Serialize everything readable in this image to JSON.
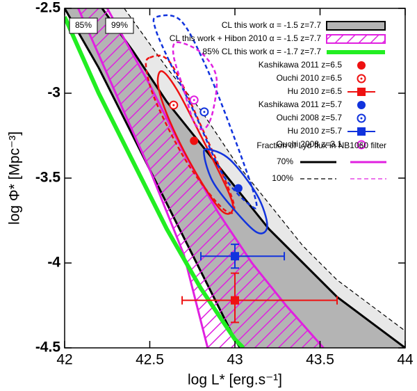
{
  "chart_data": {
    "type": "scatter",
    "xlabel": "log L* [erg.s⁻¹]",
    "ylabel": "log Φ* [Mpc⁻³]",
    "xlim": [
      42,
      44
    ],
    "xticks": [
      42,
      42.5,
      43,
      43.5,
      44
    ],
    "ylim": [
      -4.5,
      -2.5
    ],
    "yticks": [
      -2.5,
      -3,
      -3.5,
      -4,
      -4.5
    ],
    "annotations": [
      "85%",
      "99%"
    ],
    "bands": [
      {
        "color": "#e8e8e8",
        "edge": "#000000",
        "edge_style": "dashed",
        "lower": {
          "x": [
            42.22,
            42.4,
            42.6,
            42.8,
            43.0,
            43.2,
            43.4,
            43.6,
            43.8,
            44
          ],
          "y": [
            -2.5,
            -2.75,
            -3.05,
            -3.3,
            -3.55,
            -3.8,
            -4.0,
            -4.2,
            -4.35,
            -4.5
          ]
        },
        "upper": {
          "x": [
            42.35,
            42.6,
            42.8,
            43.0,
            43.2,
            43.4,
            43.6,
            43.8,
            44
          ],
          "y": [
            -2.5,
            -2.85,
            -3.1,
            -3.4,
            -3.65,
            -3.9,
            -4.1,
            -4.25,
            -4.4
          ]
        }
      },
      {
        "name": "CL this work α = -1.5 z=7.7",
        "color": "#b4b4b4",
        "edge": "#000000",
        "edge_style": "solid",
        "lower": {
          "x": [
            42,
            42.2,
            42.4,
            42.6,
            42.8,
            43.0,
            43.03
          ],
          "y": [
            -2.5,
            -2.85,
            -3.25,
            -3.65,
            -4.05,
            -4.45,
            -4.5
          ]
        },
        "upper": {
          "x": [
            42.22,
            42.4,
            42.6,
            42.8,
            43.0,
            43.2,
            43.4,
            43.6,
            43.8,
            44
          ],
          "y": [
            -2.5,
            -2.75,
            -3.05,
            -3.3,
            -3.55,
            -3.8,
            -4.0,
            -4.2,
            -4.35,
            -4.5
          ]
        }
      },
      {
        "name": "CL this work + Hibon 2010 α = -1.5 z=7.7",
        "color": "#e020e0",
        "fill": "hatch",
        "edge": "#e020e0",
        "edge_style": "solid",
        "lower": {
          "x": [
            42.08,
            42.3,
            42.5,
            42.7,
            42.84
          ],
          "y": [
            -2.5,
            -3.0,
            -3.45,
            -3.95,
            -4.5
          ]
        },
        "upper": {
          "x": [
            42.25,
            42.5,
            42.7,
            42.9,
            43.1,
            43.3,
            43.52
          ],
          "y": [
            -2.5,
            -2.95,
            -3.35,
            -3.7,
            -4.0,
            -4.25,
            -4.5
          ]
        }
      }
    ],
    "lines": [
      {
        "name": "85% CL this work α = -1.7 z=7.7",
        "color": "#22ee22",
        "x": [
          42,
          42.2,
          42.4,
          42.6,
          42.8,
          43.0,
          43.05
        ],
        "values": [
          -2.55,
          -3.0,
          -3.4,
          -3.8,
          -4.15,
          -4.45,
          -4.5
        ]
      }
    ],
    "series": [
      {
        "name": "Kashikawa 2011 z=6.5",
        "color": "#ee1111",
        "marker": "filled-circle",
        "x": [
          42.76
        ],
        "values": [
          -3.28
        ],
        "contour": {
          "style": "solid",
          "x": [
            42.57,
            42.66,
            42.8,
            42.97,
            42.98,
            42.91,
            42.76,
            42.62,
            42.55
          ],
          "y": [
            -2.87,
            -2.98,
            -3.25,
            -3.6,
            -3.7,
            -3.68,
            -3.45,
            -3.17,
            -2.96
          ]
        }
      },
      {
        "name": "Ouchi 2010 z=6.5",
        "color": "#ee1111",
        "marker": "open-circle",
        "x": [
          42.64
        ],
        "values": [
          -3.07
        ],
        "contour": {
          "style": "dashed",
          "x": [
            42.5,
            42.62,
            42.8,
            42.99,
            42.93,
            42.72,
            42.54,
            42.48
          ],
          "y": [
            -2.79,
            -2.82,
            -3.19,
            -3.64,
            -3.68,
            -3.41,
            -3.06,
            -2.86
          ]
        }
      },
      {
        "name": "Hu 2010 z=6.5",
        "color": "#ee1111",
        "marker": "square",
        "x": [
          43.0
        ],
        "values": [
          -4.22
        ],
        "xerr": [
          [
            0.31,
            0.6
          ]
        ],
        "yerr": [
          [
            0.13,
            0.16
          ]
        ]
      },
      {
        "name": "Kashikawa 2011 z=5.7",
        "color": "#1133dd",
        "marker": "filled-circle",
        "x": [
          43.02
        ],
        "values": [
          -3.56
        ],
        "contour": {
          "style": "solid",
          "x": [
            42.84,
            42.97,
            43.13,
            43.19,
            43.13,
            42.99,
            42.87,
            42.82
          ],
          "y": [
            -3.33,
            -3.39,
            -3.6,
            -3.78,
            -3.82,
            -3.68,
            -3.52,
            -3.37
          ]
        }
      },
      {
        "name": "Ouchi 2008 z=5.7",
        "color": "#1133dd",
        "marker": "open-circle",
        "x": [
          42.82
        ],
        "values": [
          -3.11
        ],
        "contour": {
          "style": "dashed",
          "x": [
            42.54,
            42.68,
            42.82,
            42.97,
            43.12,
            43.09,
            42.93,
            42.76,
            42.6,
            42.53
          ],
          "y": [
            -2.55,
            -2.57,
            -2.82,
            -3.19,
            -3.62,
            -3.66,
            -3.48,
            -3.11,
            -2.78,
            -2.61
          ]
        }
      },
      {
        "name": "Hu 2010 z=5.7",
        "color": "#1133dd",
        "marker": "square",
        "x": [
          43.0
        ],
        "values": [
          -3.96
        ],
        "xerr": [
          [
            0.2,
            0.29
          ]
        ],
        "yerr": [
          [
            0.07,
            0.07
          ]
        ]
      },
      {
        "name": "Ouchi 2008 z=3.1",
        "color": "#e020e0",
        "marker": "open-circle",
        "x": [
          42.76
        ],
        "values": [
          -3.04
        ],
        "contour": {
          "style": "dashed",
          "x": [
            42.66,
            42.8,
            42.89,
            42.87,
            42.82,
            42.76,
            42.7,
            42.64
          ],
          "y": [
            -2.7,
            -2.76,
            -2.9,
            -3.11,
            -3.21,
            -3.17,
            -2.98,
            -2.78
          ]
        }
      }
    ],
    "fraction_note": {
      "title": "Fraction of Lyα flux in NB1060 filter",
      "colors": [
        "#000000",
        "#e020e0"
      ],
      "rows": [
        {
          "label": "70%",
          "style": "solid"
        },
        {
          "label": "100%",
          "style": "dashed"
        }
      ]
    }
  }
}
